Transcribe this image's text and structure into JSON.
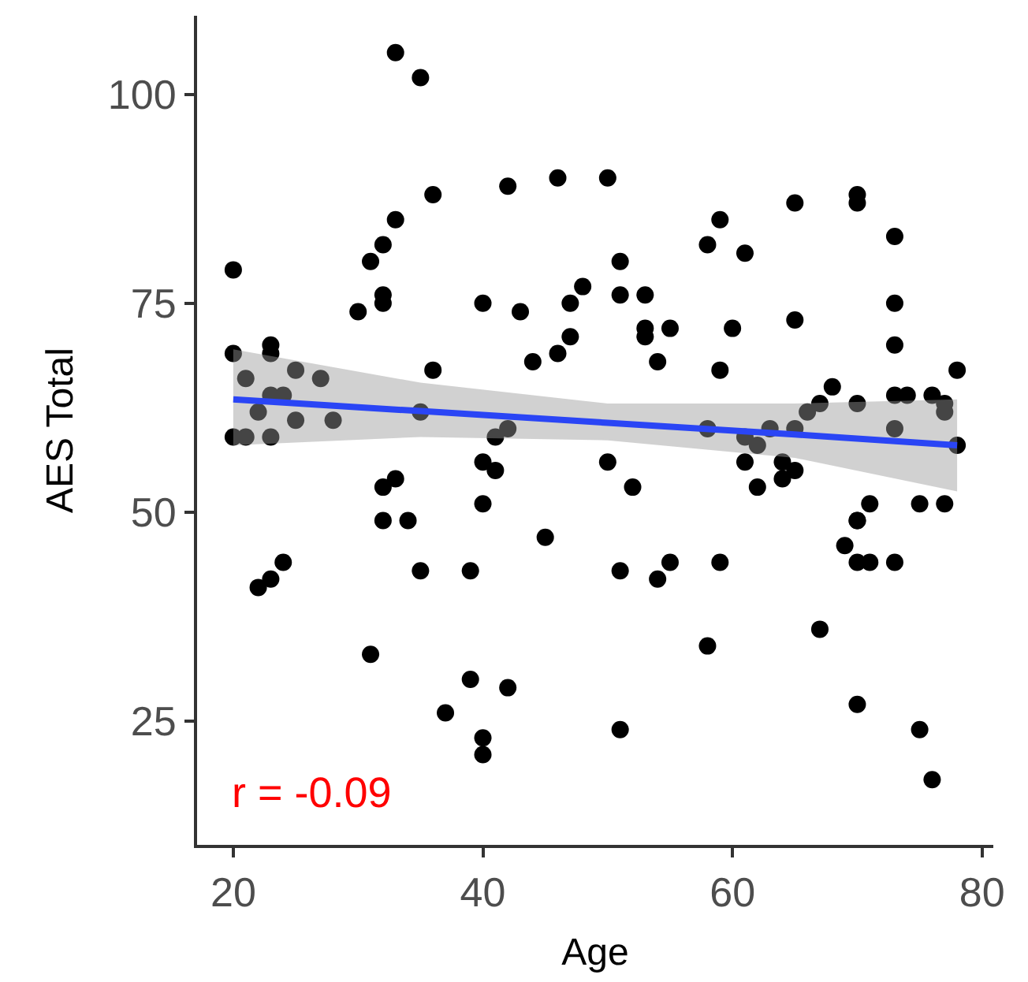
{
  "chart_data": {
    "type": "scatter",
    "xlabel": "Age",
    "ylabel": "AES Total",
    "xlim": [
      17.1,
      80.9
    ],
    "ylim": [
      10.2,
      109.4
    ],
    "xticks": [
      20,
      40,
      60,
      80
    ],
    "yticks": [
      25,
      50,
      75,
      100
    ],
    "annotations": [
      "r = -0.09"
    ],
    "series": [
      {
        "marker": "circle",
        "color": "#000000",
        "x": [
          20,
          33,
          35,
          36,
          42,
          33,
          32,
          31,
          32,
          32,
          30,
          40,
          43,
          20,
          23,
          23,
          21,
          25,
          27,
          36,
          22,
          23,
          24,
          25,
          28,
          35,
          20,
          21,
          23,
          41,
          42,
          40,
          41,
          32,
          33,
          40,
          32,
          34,
          24,
          23,
          22,
          35,
          39,
          31,
          39,
          42,
          37,
          40,
          40,
          46,
          50,
          59,
          58,
          61,
          65,
          70,
          70,
          73,
          51,
          48,
          47,
          51,
          53,
          47,
          46,
          44,
          53,
          53,
          55,
          54,
          60,
          65,
          59,
          73,
          73,
          78,
          68,
          67,
          66,
          70,
          73,
          74,
          76,
          77,
          77,
          73,
          58,
          61,
          62,
          63,
          65,
          78,
          50,
          52,
          61,
          64,
          65,
          64,
          62,
          45,
          51,
          54,
          55,
          59,
          69,
          70,
          70,
          71,
          70,
          71,
          73,
          75,
          77,
          67,
          58,
          70,
          51,
          75,
          76
        ],
        "values": [
          79,
          105,
          102,
          88,
          89,
          85,
          82,
          80,
          76,
          75,
          74,
          75,
          74,
          69,
          70,
          69,
          66,
          67,
          66,
          67,
          62,
          64,
          64,
          61,
          61,
          62,
          59,
          59,
          59,
          59,
          60,
          56,
          55,
          53,
          54,
          51,
          49,
          49,
          44,
          42,
          41,
          43,
          43,
          33,
          30,
          29,
          26,
          23,
          21,
          90,
          90,
          85,
          82,
          81,
          87,
          88,
          87,
          83,
          80,
          77,
          75,
          76,
          76,
          71,
          69,
          68,
          72,
          71,
          72,
          68,
          72,
          73,
          67,
          75,
          70,
          67,
          65,
          63,
          62,
          63,
          64,
          64,
          64,
          63,
          62,
          60,
          60,
          59,
          58,
          60,
          60,
          58,
          56,
          53,
          56,
          56,
          55,
          54,
          53,
          47,
          43,
          42,
          44,
          44,
          46,
          49,
          49,
          51,
          44,
          44,
          44,
          51,
          51,
          36,
          34,
          27,
          24,
          24,
          18
        ]
      },
      {
        "type": "line",
        "color": "#2a45f5",
        "x": [
          20,
          35,
          50,
          65,
          78
        ],
        "values": [
          63.5,
          62.1,
          60.7,
          59.3,
          58
        ],
        "lower": [
          58,
          59,
          58.6,
          56.5,
          52.5
        ],
        "upper": [
          69.5,
          65.5,
          63,
          63,
          63.5
        ]
      }
    ]
  }
}
